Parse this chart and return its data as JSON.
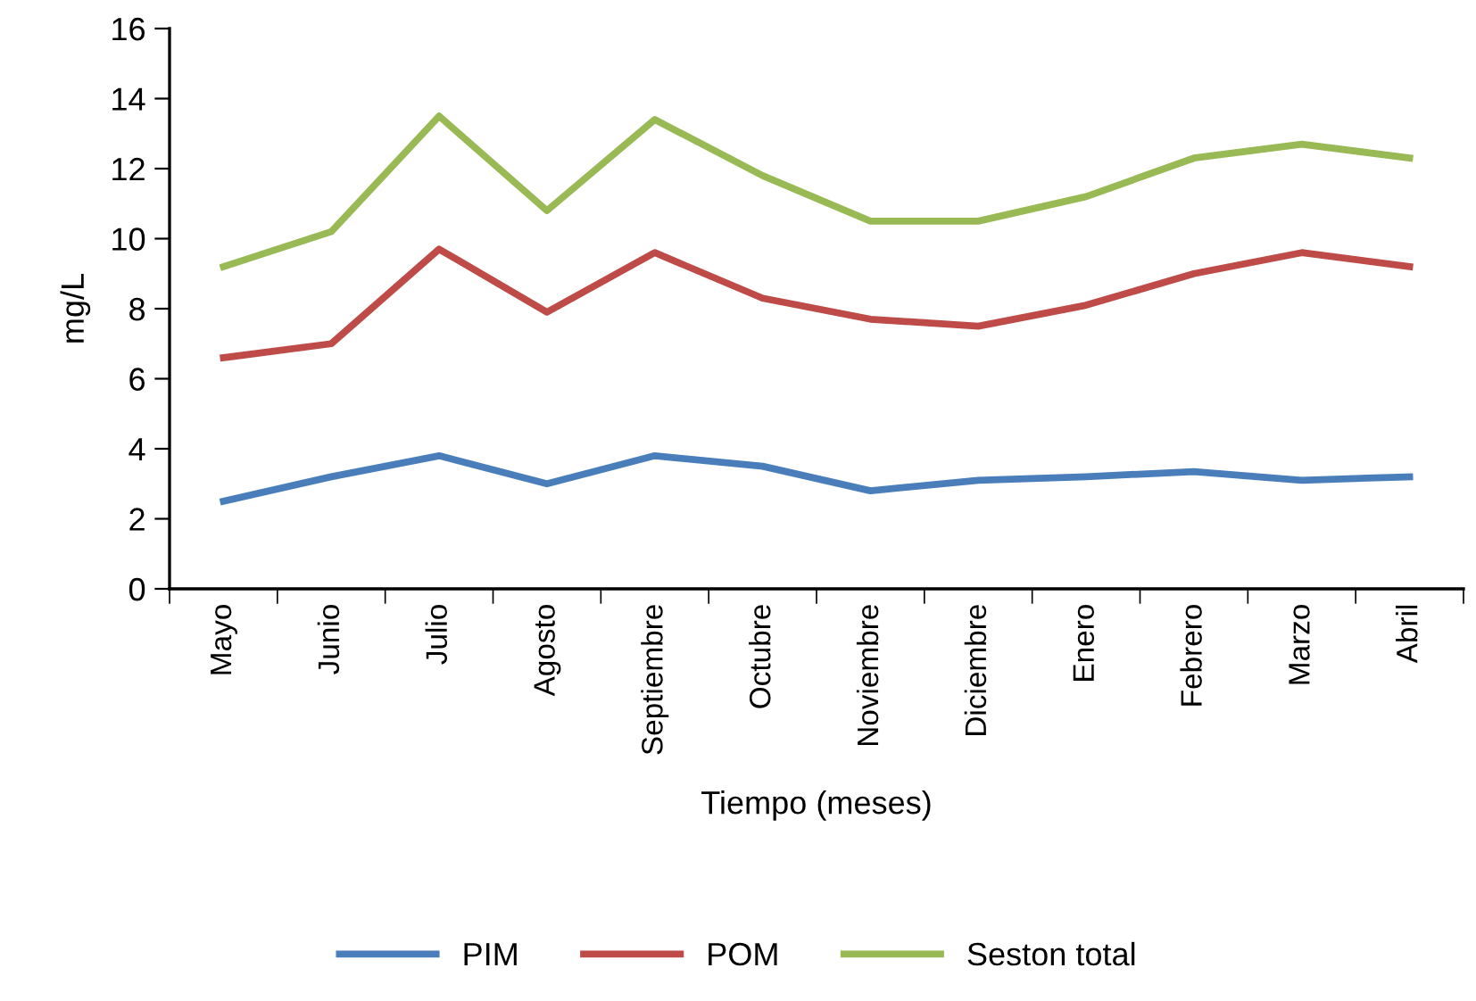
{
  "chart_data": {
    "type": "line",
    "xlabel": "Tiempo (meses)",
    "ylabel": "mg/L",
    "categories": [
      "Mayo",
      "Junio",
      "Julio",
      "Agosto",
      "Septiembre",
      "Octubre",
      "Noviembre",
      "Diciembre",
      "Enero",
      "Febrero",
      "Marzo",
      "Abril"
    ],
    "series": [
      {
        "name": "PIM",
        "color": "#4a7ebb",
        "values": [
          2.5,
          3.2,
          3.8,
          3.0,
          3.8,
          3.5,
          2.8,
          3.1,
          3.2,
          3.35,
          3.1,
          3.2
        ]
      },
      {
        "name": "POM",
        "color": "#be4b48",
        "values": [
          6.6,
          7.0,
          9.7,
          7.9,
          9.6,
          8.3,
          7.7,
          7.5,
          8.1,
          9.0,
          9.6,
          9.2
        ]
      },
      {
        "name": "Seston total",
        "color": "#98b954",
        "values": [
          9.2,
          10.2,
          13.5,
          10.8,
          13.4,
          11.8,
          10.5,
          10.5,
          11.2,
          12.3,
          12.7,
          12.3
        ]
      }
    ],
    "ylim": [
      0,
      16
    ],
    "yticks": [
      0,
      2,
      4,
      6,
      8,
      10,
      12,
      14,
      16
    ],
    "grid": false,
    "legend": "bottom",
    "marker": "none",
    "line_style": "solid"
  }
}
